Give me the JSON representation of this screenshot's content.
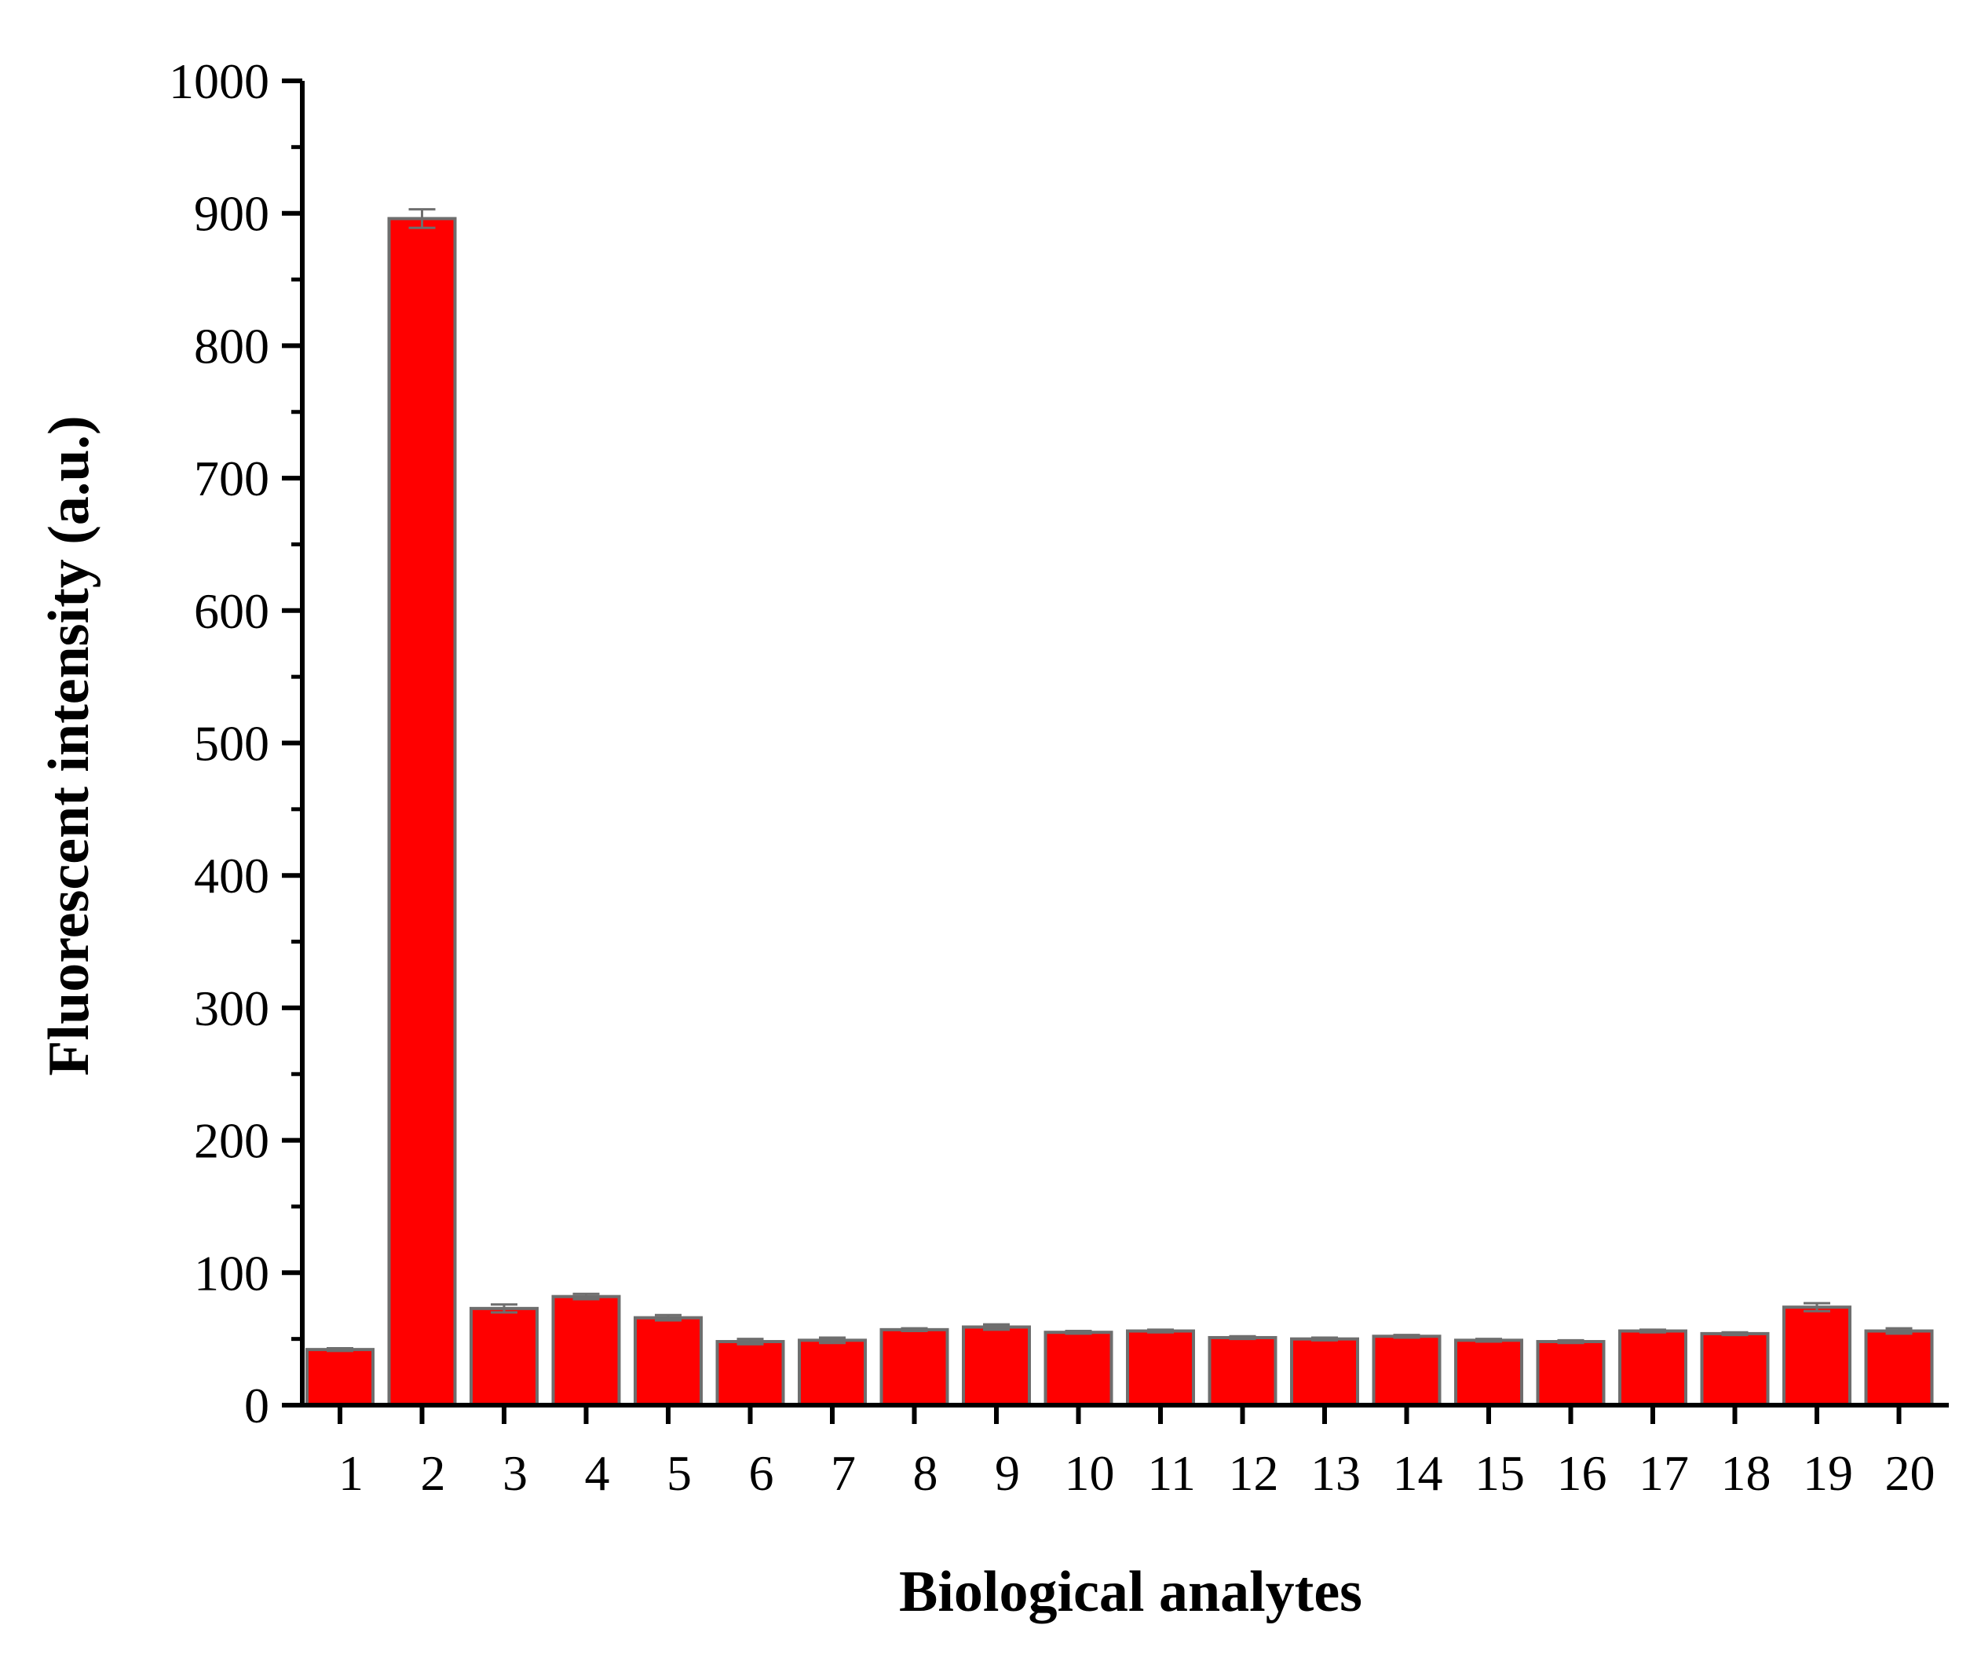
{
  "chart_data": {
    "type": "bar",
    "title": "",
    "xlabel": "Biological analytes",
    "ylabel": "Fluorescent intensity (a.u.)",
    "categories": [
      "1",
      "2",
      "3",
      "4",
      "5",
      "6",
      "7",
      "8",
      "9",
      "10",
      "11",
      "12",
      "13",
      "14",
      "15",
      "16",
      "17",
      "18",
      "19",
      "20"
    ],
    "values": [
      42,
      896,
      73,
      82,
      66,
      48,
      49,
      57,
      59,
      55,
      56,
      51,
      50,
      52,
      49,
      48,
      56,
      54,
      74,
      56
    ],
    "errors": [
      1,
      7,
      3,
      2,
      2,
      2,
      2,
      1,
      2,
      1,
      1,
      1,
      1,
      1,
      1,
      1,
      1,
      1,
      3,
      2
    ],
    "ylim": [
      0,
      1000
    ],
    "yticks": [
      0,
      100,
      200,
      300,
      400,
      500,
      600,
      700,
      800,
      900,
      1000
    ],
    "grid": false,
    "colors": {
      "bar_fill": "#ff0000",
      "bar_edge": "#6e6e6e",
      "axis": "#000000"
    }
  }
}
